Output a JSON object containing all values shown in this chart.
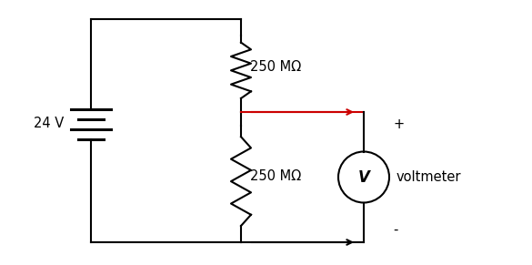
{
  "background_color": "#ffffff",
  "battery_label": "24 V",
  "resistor1_label": "250 MΩ",
  "resistor2_label": "250 MΩ",
  "voltmeter_label": "V",
  "voltmeter_text": "voltmeter",
  "plus_label": "+",
  "minus_label": "-",
  "line_color": "#000000",
  "arrow_color_red": "#cc0000",
  "arrow_color_black": "#000000",
  "font_size_label": 10.5,
  "font_size_vm": 12,
  "lw": 1.5
}
